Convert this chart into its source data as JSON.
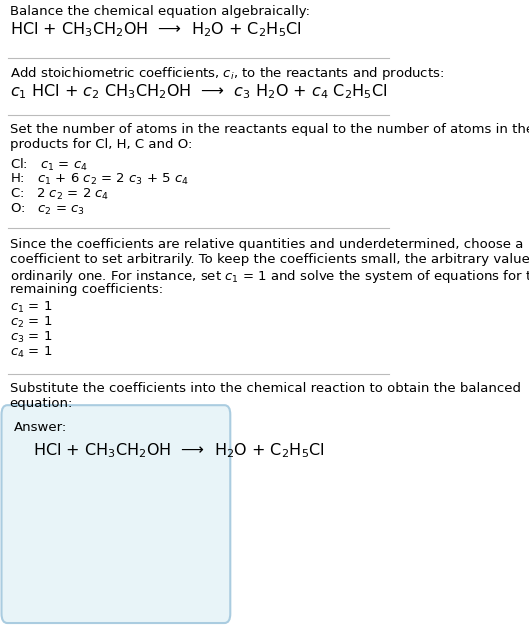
{
  "title": "Balance the chemical equation algebraically:",
  "equation1": "HCl + CH$_3$CH$_2$OH  ⟶  H$_2$O + C$_2$H$_5$Cl",
  "section2_title": "Add stoichiometric coefficients, $c_i$, to the reactants and products:",
  "equation2": "$c_1$ HCl + $c_2$ CH$_3$CH$_2$OH  ⟶  $c_3$ H$_2$O + $c_4$ C$_2$H$_5$Cl",
  "section3_line1": "Set the number of atoms in the reactants equal to the number of atoms in the",
  "section3_line2": "products for Cl, H, C and O:",
  "equations3": [
    "Cl:   $c_1$ = $c_4$",
    "H:   $c_1$ + 6 $c_2$ = 2 $c_3$ + 5 $c_4$",
    "C:   2 $c_2$ = 2 $c_4$",
    "O:   $c_2$ = $c_3$"
  ],
  "section4_line1": "Since the coefficients are relative quantities and underdetermined, choose a",
  "section4_line2": "coefficient to set arbitrarily. To keep the coefficients small, the arbitrary value is",
  "section4_line3": "ordinarily one. For instance, set $c_1$ = 1 and solve the system of equations for the",
  "section4_line4": "remaining coefficients:",
  "coefficients": [
    "$c_1$ = 1",
    "$c_2$ = 1",
    "$c_3$ = 1",
    "$c_4$ = 1"
  ],
  "section5_line1": "Substitute the coefficients into the chemical reaction to obtain the balanced",
  "section5_line2": "equation:",
  "answer_label": "Answer:",
  "answer_equation": "HCl + CH$_3$CH$_2$OH  ⟶  H$_2$O + C$_2$H$_5$Cl",
  "bg_color": "#ffffff",
  "text_color": "#000000",
  "box_bg_color": "#e8f4f8",
  "box_border_color": "#aacce0",
  "separator_color": "#bbbbbb",
  "font_size": 9.5,
  "eq_font_size": 11.5
}
